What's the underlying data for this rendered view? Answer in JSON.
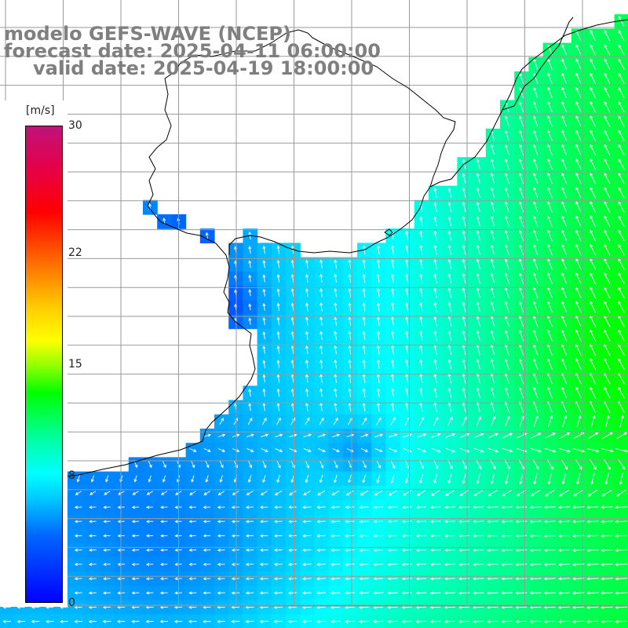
{
  "title": {
    "line1": "modelo GEFS-WAVE (NCEP)",
    "line2": "forecast date: 2025-04-11 06:00:00",
    "line3": "valid date: 2025-04-19 18:00:00"
  },
  "legend": {
    "units": "[m/s]",
    "ticks": [
      {
        "value": 30,
        "label": "30"
      },
      {
        "value": 22,
        "label": "22"
      },
      {
        "value": 15,
        "label": "15"
      },
      {
        "value": 8,
        "label": "8"
      },
      {
        "value": 0,
        "label": "0"
      }
    ],
    "range": [
      0,
      30
    ]
  },
  "colors": {
    "land": "#ffffff",
    "grid": "#9a9a9a",
    "coast": "#000000",
    "arrow": "#ffffff",
    "title_text": "#7f7f7f"
  },
  "map": {
    "variable": "wind speed",
    "units": "m/s",
    "arrow_direction": "arrows point north / north-west over the northern sea, toward the west in the southern part",
    "field_summary": {
      "nearshore_speed_m_s": [
        2,
        5
      ],
      "offshore_east_speed_m_s": [
        9,
        13
      ],
      "southern_band_speed_m_s": [
        7,
        9
      ]
    }
  }
}
